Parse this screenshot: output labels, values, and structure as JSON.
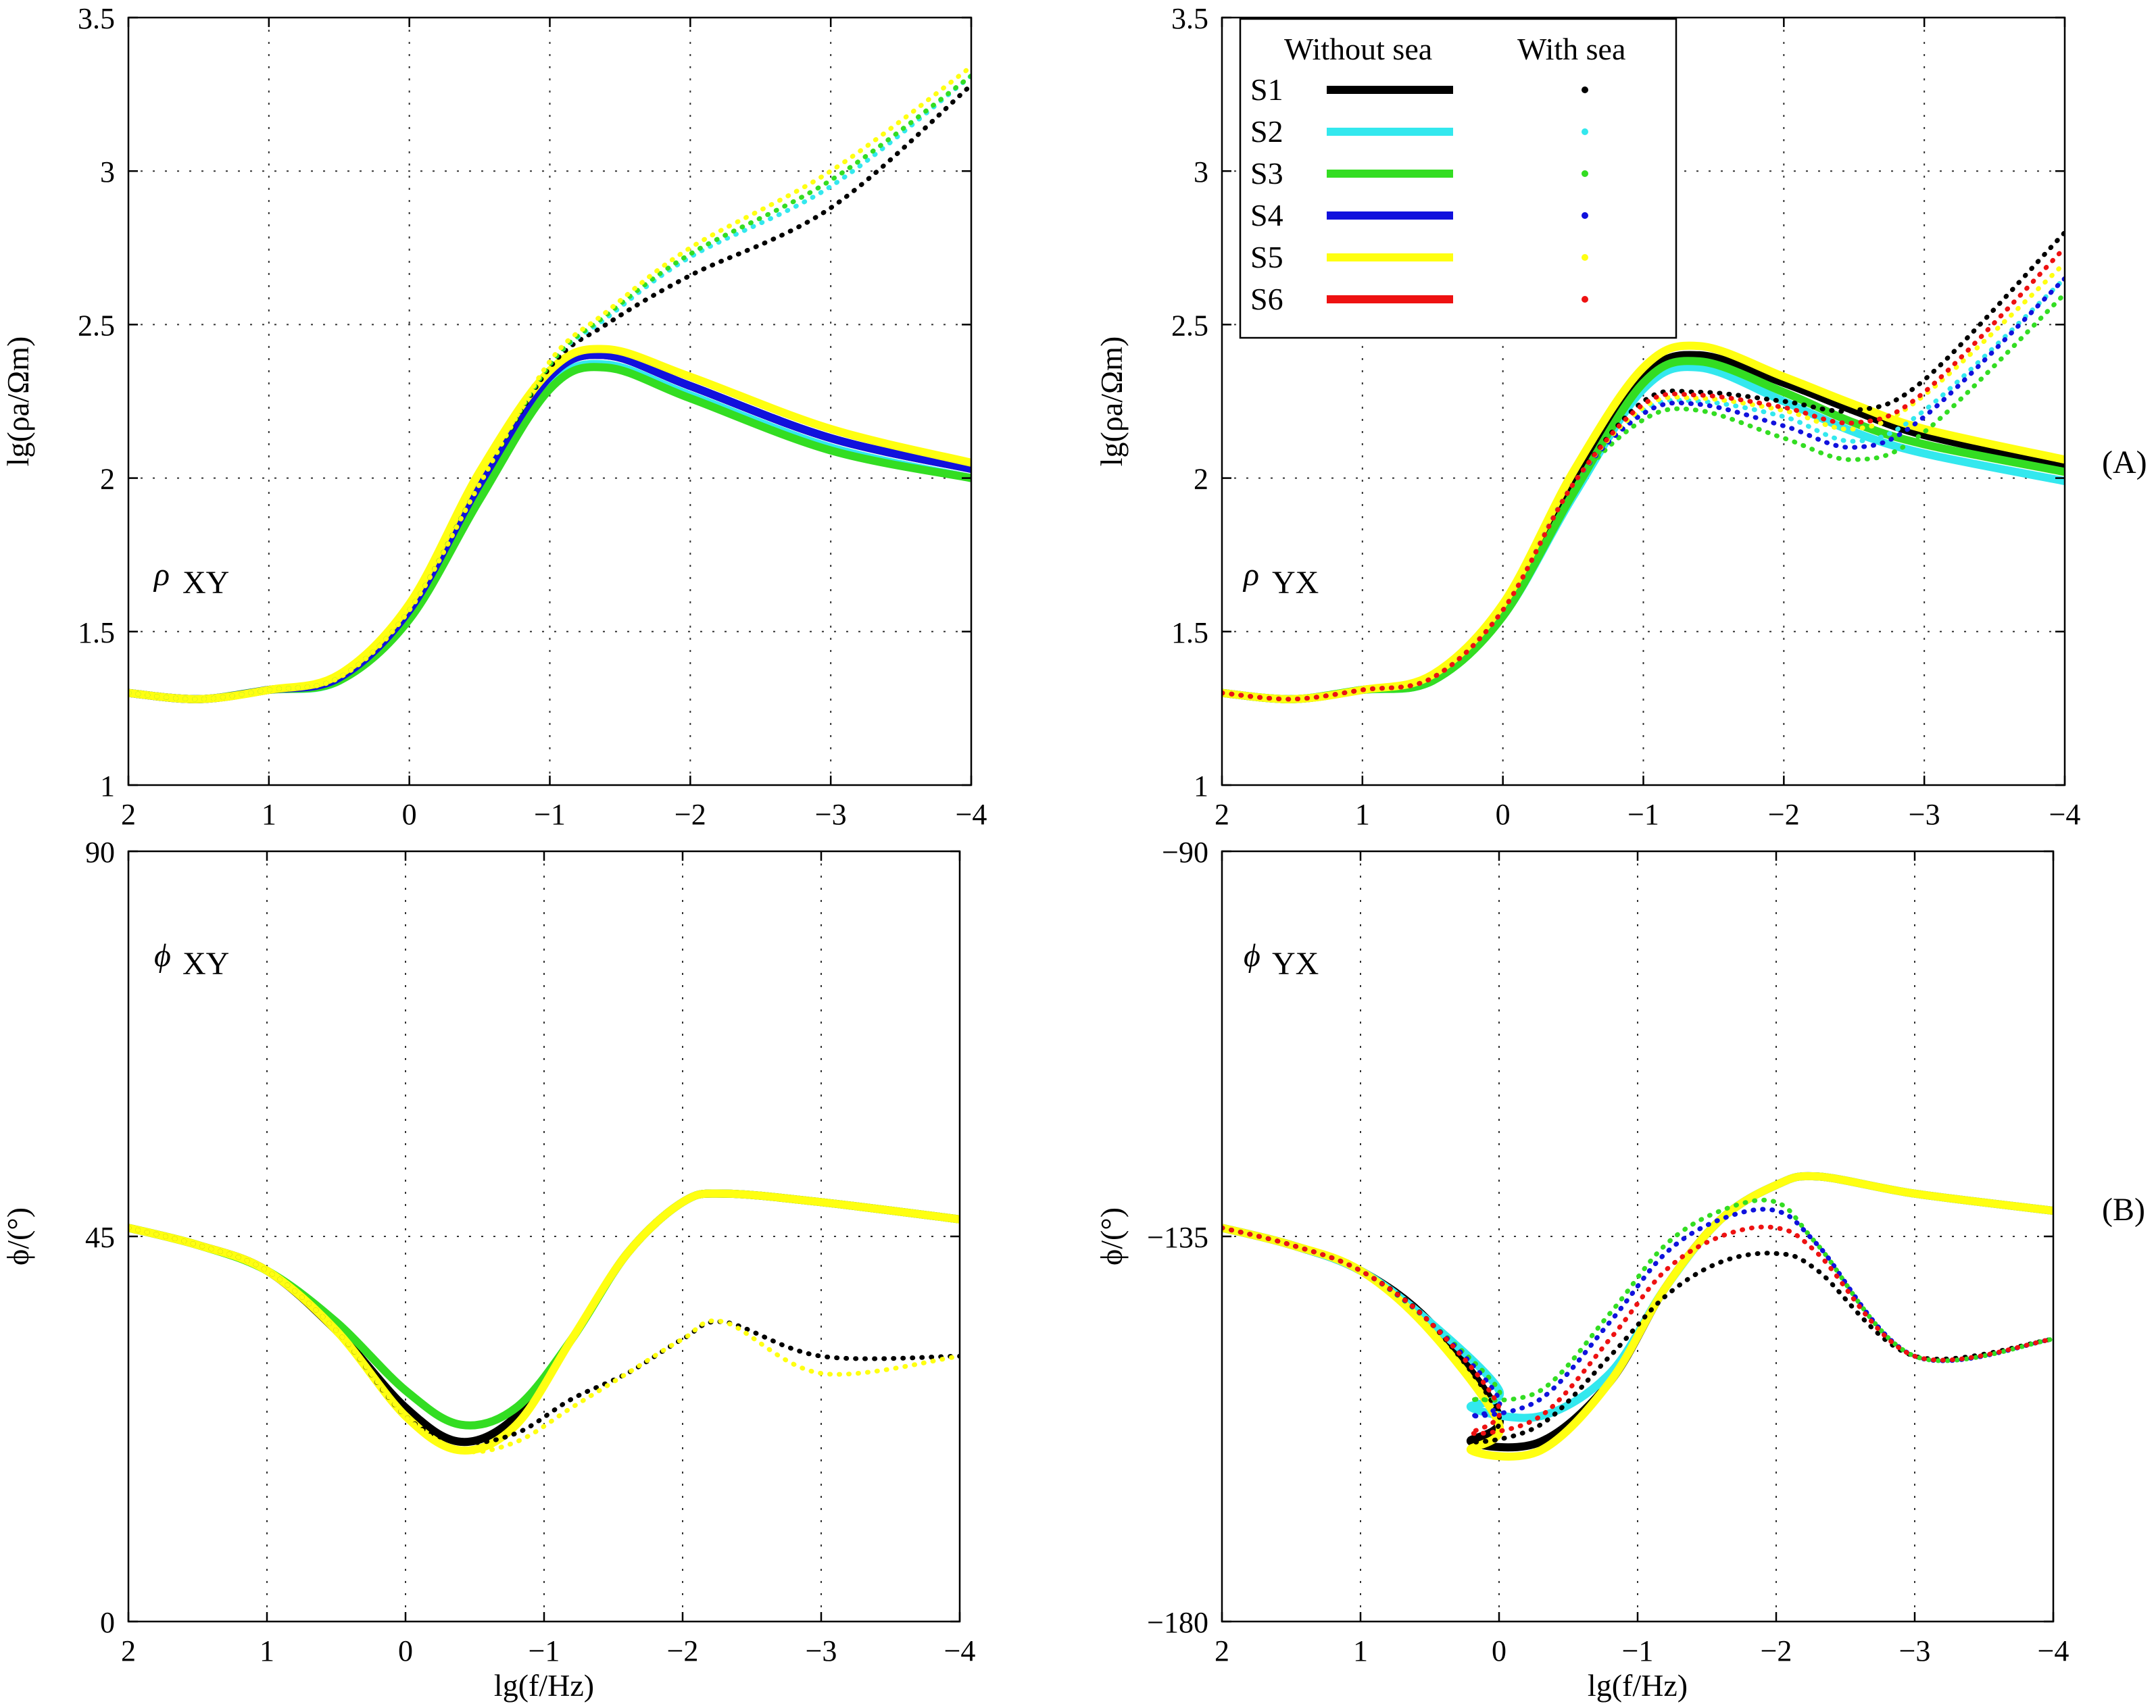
{
  "figure": {
    "label_A": "(A)",
    "label_B": "(B)"
  },
  "chart_data": [
    {
      "id": "rho_xy",
      "type": "line",
      "curve_label": "ρ",
      "curve_sub": "XY",
      "ylabel": "lg(ρa/Ωm)",
      "xlabel": "",
      "xlim": [
        2,
        -4
      ],
      "ylim": [
        1,
        3.5
      ],
      "xticks": [
        2,
        1,
        0,
        -1,
        -2,
        -3,
        -4
      ],
      "xtick_labels": [
        "2",
        "1",
        "0",
        "−1",
        "−2",
        "−3",
        "−4"
      ],
      "yticks": [
        1,
        1.5,
        2,
        2.5,
        3,
        3.5
      ],
      "ytick_labels": [
        "1",
        "1.5",
        "2",
        "2.5",
        "3",
        "3.5"
      ],
      "x": [
        2,
        1.5,
        1,
        0.5,
        0,
        -0.5,
        -1,
        -1.4,
        -2,
        -3,
        -4
      ],
      "series": [
        {
          "name": "S1 without sea",
          "values": [
            1.3,
            1.28,
            1.31,
            1.35,
            1.57,
            1.98,
            2.33,
            2.4,
            2.3,
            2.13,
            2.03
          ]
        },
        {
          "name": "S2 without sea",
          "values": [
            1.3,
            1.28,
            1.31,
            1.34,
            1.55,
            1.94,
            2.3,
            2.37,
            2.27,
            2.1,
            2.0
          ]
        },
        {
          "name": "S3 without sea",
          "values": [
            1.3,
            1.28,
            1.31,
            1.34,
            1.54,
            1.93,
            2.29,
            2.36,
            2.26,
            2.09,
            2.0
          ]
        },
        {
          "name": "S4 without sea",
          "values": [
            1.3,
            1.28,
            1.31,
            1.35,
            1.57,
            1.98,
            2.33,
            2.4,
            2.3,
            2.13,
            2.03
          ]
        },
        {
          "name": "S5 without sea",
          "values": [
            1.3,
            1.28,
            1.31,
            1.36,
            1.59,
            2.02,
            2.35,
            2.42,
            2.33,
            2.16,
            2.05
          ]
        },
        {
          "name": "S1 with sea",
          "values": [
            1.3,
            1.28,
            1.31,
            1.35,
            1.57,
            1.98,
            2.36,
            2.5,
            2.66,
            2.88,
            3.28
          ]
        },
        {
          "name": "S2 with sea",
          "values": [
            1.3,
            1.28,
            1.31,
            1.35,
            1.57,
            1.98,
            2.37,
            2.52,
            2.72,
            2.95,
            3.31
          ]
        },
        {
          "name": "S3 with sea",
          "values": [
            1.3,
            1.28,
            1.31,
            1.35,
            1.57,
            1.98,
            2.37,
            2.53,
            2.73,
            2.97,
            3.31
          ]
        },
        {
          "name": "S5 with sea",
          "values": [
            1.3,
            1.28,
            1.31,
            1.35,
            1.57,
            1.98,
            2.38,
            2.54,
            2.75,
            3.0,
            3.34
          ]
        }
      ]
    },
    {
      "id": "rho_yx",
      "type": "line",
      "curve_label": "ρ",
      "curve_sub": "YX",
      "ylabel": "lg(ρa/Ωm)",
      "xlabel": "",
      "xlim": [
        2,
        -4
      ],
      "ylim": [
        1,
        3.5
      ],
      "xticks": [
        2,
        1,
        0,
        -1,
        -2,
        -3,
        -4
      ],
      "xtick_labels": [
        "2",
        "1",
        "0",
        "−1",
        "−2",
        "−3",
        "−4"
      ],
      "yticks": [
        1,
        1.5,
        2,
        2.5,
        3,
        3.5
      ],
      "ytick_labels": [
        "1",
        "1.5",
        "2",
        "2.5",
        "3",
        "3.5"
      ],
      "x": [
        2,
        1.5,
        1,
        0.5,
        0,
        -0.5,
        -1,
        -1.4,
        -2,
        -2.5,
        -3,
        -4
      ],
      "series": [
        {
          "name": "S1 without sea",
          "values": [
            1.3,
            1.28,
            1.31,
            1.35,
            1.57,
            1.98,
            2.33,
            2.4,
            2.31,
            2.22,
            2.14,
            2.04
          ]
        },
        {
          "name": "S2 without sea",
          "values": [
            1.3,
            1.28,
            1.31,
            1.34,
            1.55,
            1.94,
            2.29,
            2.36,
            2.25,
            2.15,
            2.08,
            1.99
          ]
        },
        {
          "name": "S3 without sea",
          "values": [
            1.3,
            1.28,
            1.31,
            1.34,
            1.55,
            1.95,
            2.31,
            2.38,
            2.28,
            2.18,
            2.11,
            2.02
          ]
        },
        {
          "name": "S5 without sea",
          "values": [
            1.3,
            1.28,
            1.31,
            1.36,
            1.59,
            2.02,
            2.36,
            2.43,
            2.33,
            2.24,
            2.16,
            2.06
          ]
        },
        {
          "name": "S1 with sea",
          "values": [
            1.3,
            1.28,
            1.31,
            1.35,
            1.57,
            1.98,
            2.25,
            2.28,
            2.25,
            2.22,
            2.32,
            2.8
          ]
        },
        {
          "name": "S2 with sea",
          "values": [
            1.3,
            1.28,
            1.31,
            1.35,
            1.57,
            1.98,
            2.22,
            2.25,
            2.2,
            2.12,
            2.22,
            2.65
          ]
        },
        {
          "name": "S3 with sea",
          "values": [
            1.3,
            1.28,
            1.31,
            1.35,
            1.57,
            1.97,
            2.19,
            2.22,
            2.13,
            2.06,
            2.15,
            2.6
          ]
        },
        {
          "name": "S4 with sea",
          "values": [
            1.3,
            1.28,
            1.31,
            1.35,
            1.57,
            1.98,
            2.21,
            2.24,
            2.17,
            2.1,
            2.2,
            2.65
          ]
        },
        {
          "name": "S5 with sea",
          "values": [
            1.3,
            1.28,
            1.31,
            1.35,
            1.57,
            1.98,
            2.23,
            2.26,
            2.22,
            2.16,
            2.27,
            2.7
          ]
        },
        {
          "name": "S6 with sea",
          "values": [
            1.3,
            1.28,
            1.31,
            1.35,
            1.57,
            1.98,
            2.24,
            2.27,
            2.23,
            2.18,
            2.28,
            2.75
          ]
        }
      ]
    },
    {
      "id": "phi_xy",
      "type": "line",
      "curve_label": "ϕ",
      "curve_sub": "XY",
      "ylabel": "ϕ/(°)",
      "xlabel": "lg(f/Hz)",
      "xlim": [
        2,
        -4
      ],
      "ylim": [
        0,
        90
      ],
      "xticks": [
        2,
        1,
        0,
        -1,
        -2,
        -3,
        -4
      ],
      "xtick_labels": [
        "2",
        "1",
        "0",
        "−1",
        "−2",
        "−3",
        "−4"
      ],
      "yticks": [
        0,
        45,
        90
      ],
      "ytick_labels": [
        "0",
        "45",
        "90"
      ],
      "x": [
        2,
        1.5,
        1,
        0.5,
        0,
        -0.4,
        -0.8,
        -1.2,
        -1.6,
        -2,
        -2.3,
        -3,
        -4
      ],
      "series": [
        {
          "name": "S1 without sea",
          "values": [
            46,
            44,
            41,
            34,
            25,
            21,
            24,
            33,
            43,
            49,
            50,
            49,
            47
          ]
        },
        {
          "name": "S3 without sea",
          "values": [
            46,
            44,
            41,
            35,
            27,
            23,
            25,
            33,
            43,
            49,
            50,
            49,
            47
          ]
        },
        {
          "name": "S5 without sea",
          "values": [
            46,
            44,
            41,
            34,
            24,
            20,
            23,
            33,
            43,
            49,
            50,
            49,
            47
          ]
        },
        {
          "name": "S1 with sea",
          "values": [
            46,
            44,
            41,
            34,
            24,
            21,
            22,
            26,
            29,
            33,
            35,
            31,
            31
          ]
        },
        {
          "name": "S5 with sea",
          "values": [
            46,
            44,
            41,
            34,
            24,
            20,
            21,
            25,
            29,
            33,
            35,
            29,
            31
          ]
        }
      ]
    },
    {
      "id": "phi_yx",
      "type": "line",
      "curve_label": "ϕ",
      "curve_sub": "YX",
      "ylabel": "ϕ/(°)",
      "xlabel": "lg(f/Hz)",
      "xlim": [
        2,
        -4
      ],
      "ylim": [
        -180,
        -90
      ],
      "xticks": [
        2,
        1,
        0,
        -1,
        -2,
        -3,
        -4
      ],
      "xtick_labels": [
        "2",
        "1",
        "0",
        "−1",
        "−2",
        "−3",
        "−4"
      ],
      "yticks": [
        -180,
        -135,
        -90
      ],
      "ytick_labels": [
        "−180",
        "−135",
        "−90"
      ],
      "x": [
        2,
        1.5,
        1,
        0.5,
        0,
        0.2,
        -0.3,
        -0.8,
        -1.2,
        -1.6,
        -2,
        -2.3,
        -3,
        -4
      ],
      "series": [
        {
          "name": "S1 without sea",
          "values": [
            -134,
            -136,
            -139,
            -145,
            -156,
            -159,
            -159,
            -152,
            -141,
            -133,
            -129,
            -128,
            -130,
            -132
          ]
        },
        {
          "name": "S2 without sea",
          "values": [
            -134,
            -136,
            -139,
            -145,
            -153,
            -155,
            -156,
            -151,
            -141,
            -133,
            -129,
            -128,
            -130,
            -132
          ]
        },
        {
          "name": "S5 without sea",
          "values": [
            -134,
            -136,
            -139,
            -146,
            -157,
            -160,
            -160,
            -152,
            -141,
            -133,
            -129,
            -128,
            -130,
            -132
          ]
        },
        {
          "name": "S1 with sea",
          "values": [
            -134,
            -136,
            -139,
            -145,
            -156,
            -159,
            -157,
            -149,
            -142,
            -138,
            -137,
            -139,
            -149,
            -147
          ]
        },
        {
          "name": "S2 with sea",
          "values": [
            -134,
            -136,
            -139,
            -145,
            -154,
            -156,
            -154,
            -145,
            -137,
            -133,
            -132,
            -136,
            -149,
            -147
          ]
        },
        {
          "name": "S3 with sea",
          "values": [
            -134,
            -136,
            -139,
            -145,
            -153,
            -154,
            -153,
            -144,
            -136,
            -132,
            -131,
            -136,
            -149,
            -147
          ]
        },
        {
          "name": "S4 with sea",
          "values": [
            -134,
            -136,
            -139,
            -145,
            -154,
            -156,
            -154,
            -145,
            -137,
            -133,
            -132,
            -136,
            -149,
            -147
          ]
        },
        {
          "name": "S6 with sea",
          "values": [
            -134,
            -136,
            -139,
            -145,
            -155,
            -158,
            -156,
            -147,
            -139,
            -135,
            -134,
            -137,
            -149,
            -147
          ]
        }
      ]
    }
  ],
  "legend": {
    "header_without": "Without sea",
    "header_with": "With sea",
    "entries": [
      {
        "label": "S1",
        "color": "#000000"
      },
      {
        "label": "S2",
        "color": "#33e8ee"
      },
      {
        "label": "S3",
        "color": "#33dd22"
      },
      {
        "label": "S4",
        "color": "#1111dd"
      },
      {
        "label": "S5",
        "color": "#ffff11"
      },
      {
        "label": "S6",
        "color": "#ee1111"
      }
    ]
  },
  "colors": {
    "S1": "#000000",
    "S2": "#33e8ee",
    "S3": "#33dd22",
    "S4": "#1111dd",
    "S5": "#ffff11",
    "S6": "#ee1111"
  }
}
